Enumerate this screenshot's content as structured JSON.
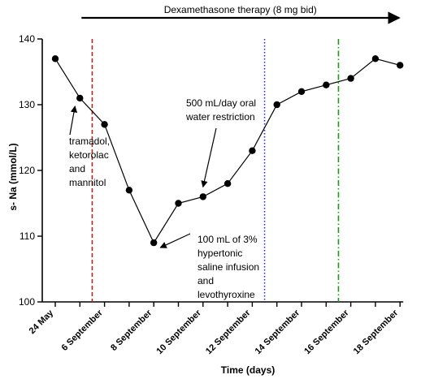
{
  "chart_data": {
    "type": "line",
    "title": "",
    "xlabel": "Time (days)",
    "ylabel": "s- Na (mmol/L)",
    "ylim": [
      100,
      140
    ],
    "yticks": [
      100,
      110,
      120,
      130,
      140
    ],
    "xticks": [
      "24 May",
      "6 September",
      "8 September",
      "10 September",
      "12 September",
      "14 September",
      "16 September",
      "18 September"
    ],
    "x_index": [
      0,
      2,
      4,
      6,
      8,
      10,
      12,
      14
    ],
    "series": [
      {
        "values": [
          {
            "x": 0,
            "y": 137
          },
          {
            "x": 1,
            "y": 131
          },
          {
            "x": 2,
            "y": 127
          },
          {
            "x": 3,
            "y": 117
          },
          {
            "x": 4,
            "y": 109
          },
          {
            "x": 5,
            "y": 115
          },
          {
            "x": 6,
            "y": 116
          },
          {
            "x": 7,
            "y": 118
          },
          {
            "x": 8,
            "y": 123
          },
          {
            "x": 9,
            "y": 130
          },
          {
            "x": 10,
            "y": 132
          },
          {
            "x": 11,
            "y": 133
          },
          {
            "x": 12,
            "y": 134
          },
          {
            "x": 13,
            "y": 137
          },
          {
            "x": 14,
            "y": 136
          }
        ]
      }
    ],
    "vertical_lines": [
      {
        "x": 1,
        "style": "dashed",
        "color": "#b22222"
      },
      {
        "x": 8,
        "style": "dotted",
        "color": "#2b2bcc"
      },
      {
        "x": 11,
        "style": "dashdot",
        "color": "#1a9a1a"
      }
    ],
    "banner": {
      "text": "Dexamethasone therapy (8 mg bid)",
      "x_start": 1,
      "direction": "right"
    },
    "annotations": [
      {
        "lines": [
          "tramadol,",
          "ketorolac",
          "and",
          "mannitol"
        ],
        "target": {
          "x": 1,
          "y": 131
        }
      },
      {
        "lines": [
          "500 mL/day oral",
          "water restriction"
        ],
        "target": {
          "x": 6,
          "y": 116
        }
      },
      {
        "lines": [
          "100 mL of 3%",
          "hypertonic",
          "saline infusion",
          "and",
          "levothyroxine"
        ],
        "target": {
          "x": 4,
          "y": 109
        }
      }
    ],
    "grid": false,
    "legend": "none"
  }
}
